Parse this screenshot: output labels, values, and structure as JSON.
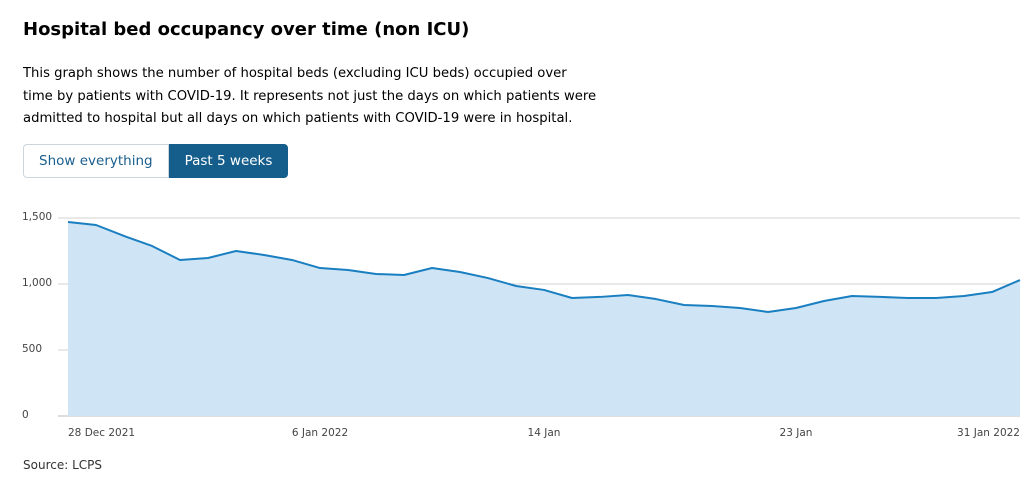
{
  "header": {
    "title": "Hospital bed occupancy over time (non ICU)",
    "description": "This graph shows the number of hospital beds (excluding ICU beds) occupied over time by patients with COVID-19. It represents not just the days on which patients were admitted to hospital but all days on which patients with COVID-19 were in hospital."
  },
  "buttons": [
    "Show everything",
    "Past 5 weeks"
  ],
  "chart_data": {
    "type": "area",
    "categories": [
      "28 Dec 2021",
      null,
      null,
      null,
      null,
      null,
      null,
      null,
      null,
      "6 Jan 2022",
      null,
      null,
      null,
      null,
      null,
      null,
      null,
      "14 Jan",
      null,
      null,
      null,
      null,
      null,
      null,
      null,
      null,
      "23 Jan",
      null,
      null,
      null,
      null,
      null,
      null,
      null,
      "31 Jan 2022"
    ],
    "values": [
      1470,
      1447,
      1364,
      1288,
      1182,
      1197,
      1250,
      1220,
      1182,
      1121,
      1106,
      1076,
      1068,
      1121,
      1091,
      1045,
      985,
      955,
      894,
      902,
      917,
      886,
      841,
      833,
      818,
      788,
      818,
      871,
      909,
      902,
      894,
      894,
      909,
      939,
      1030
    ],
    "color": "#1a7fc1",
    "fill": "#cfe5f5",
    "ylim": [
      0,
      1500
    ],
    "yticks": [
      0,
      500,
      {
        "value": 1000,
        "label": "1,000"
      },
      {
        "value": 1500,
        "label": "1,500"
      }
    ],
    "grid": true
  },
  "source": "Source: LCPS"
}
